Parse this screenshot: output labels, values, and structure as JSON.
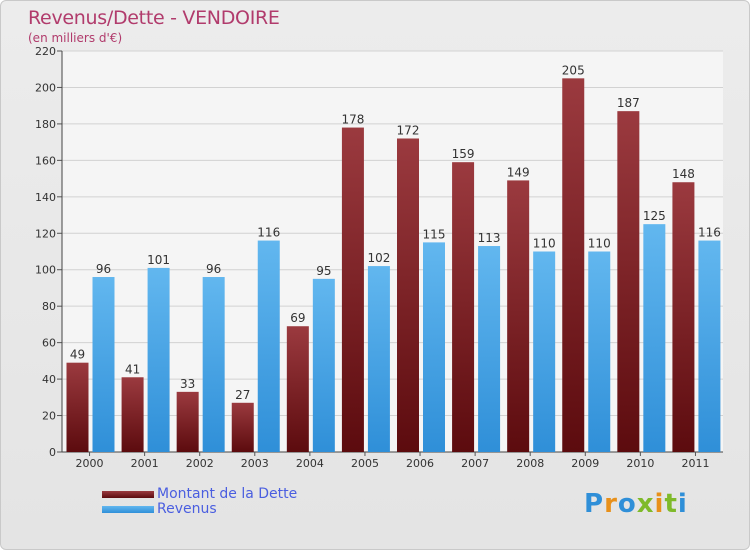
{
  "title": "Revenus/Dette - VENDOIRE",
  "subtitle": "(en milliers d'€)",
  "brand": {
    "text": "Proxiti"
  },
  "colors": {
    "debt_top": "#9b3a3f",
    "debt_bottom": "#5c0b0e",
    "rev_top": "#62b7ef",
    "rev_bottom": "#2f8fd8",
    "title": "#b13b6c",
    "legend_text": "#4a5ee0"
  },
  "chart_data": {
    "type": "bar",
    "title": "Revenus/Dette - VENDOIRE",
    "ylabel": "(en milliers d'€)",
    "xlabel": "",
    "categories": [
      "2000",
      "2001",
      "2002",
      "2003",
      "2004",
      "2005",
      "2006",
      "2007",
      "2008",
      "2009",
      "2010",
      "2011"
    ],
    "series": [
      {
        "name": "Montant de la Dette",
        "values": [
          49,
          41,
          33,
          27,
          69,
          178,
          172,
          159,
          149,
          205,
          187,
          148
        ]
      },
      {
        "name": "Revenus",
        "values": [
          96,
          101,
          96,
          116,
          95,
          102,
          115,
          113,
          110,
          110,
          125,
          116
        ]
      }
    ],
    "ylim": [
      0,
      220
    ],
    "yticks": [
      0,
      20,
      40,
      60,
      80,
      100,
      120,
      140,
      160,
      180,
      200,
      220
    ],
    "grid": true,
    "legend": "bottom-left"
  }
}
